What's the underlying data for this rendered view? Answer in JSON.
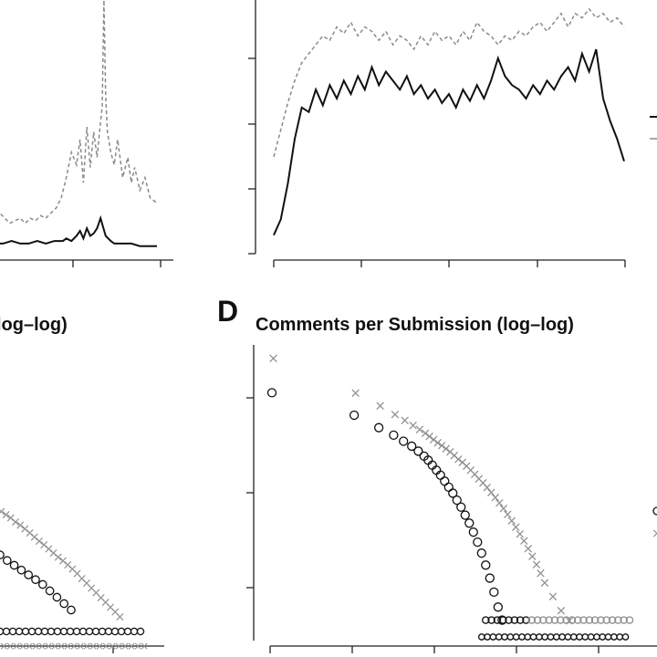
{
  "panel_c": {
    "letter": "",
    "title_fragment": "log–log)"
  },
  "panel_d": {
    "letter": "D",
    "title": "Comments per Submission (log–log)"
  },
  "colors": {
    "solid": "#111111",
    "dashed": "#8a8a8a",
    "marker_grey": "#8f8f8f",
    "marker_dark": "#111111"
  },
  "chart_data": [
    {
      "id": "top-left",
      "type": "line",
      "title": "",
      "series": [
        {
          "name": "",
          "style": "solid",
          "x": [
            0,
            5,
            10,
            15,
            20,
            25,
            30,
            35,
            40,
            42,
            45,
            48,
            50,
            52,
            54,
            56,
            58,
            60,
            62,
            65,
            68,
            70,
            75,
            80,
            85,
            90,
            95
          ],
          "y": [
            4,
            4,
            5,
            4,
            4,
            5,
            4,
            5,
            5,
            6,
            5,
            7,
            9,
            6,
            10,
            7,
            8,
            10,
            14,
            7,
            5,
            4,
            4,
            4,
            3,
            3,
            3
          ]
        },
        {
          "name": "",
          "style": "dashed",
          "x": [
            0,
            3,
            6,
            9,
            12,
            15,
            18,
            21,
            24,
            27,
            30,
            33,
            36,
            39,
            42,
            45,
            48,
            50,
            52,
            54,
            56,
            58,
            60,
            62,
            63,
            64,
            65,
            66,
            68,
            70,
            72,
            75,
            78,
            80,
            82,
            85,
            88,
            91,
            95
          ],
          "y": [
            20,
            16,
            14,
            12,
            13,
            14,
            12,
            14,
            13,
            15,
            14,
            16,
            18,
            22,
            30,
            40,
            35,
            45,
            28,
            50,
            34,
            48,
            38,
            52,
            58,
            100,
            62,
            48,
            40,
            35,
            45,
            30,
            38,
            28,
            34,
            25,
            30,
            22,
            20
          ]
        }
      ]
    },
    {
      "id": "top-right",
      "type": "line",
      "title": "",
      "series": [
        {
          "name": "",
          "style": "solid",
          "x": [
            0,
            2,
            4,
            6,
            8,
            10,
            12,
            14,
            16,
            18,
            20,
            22,
            24,
            26,
            28,
            30,
            32,
            34,
            36,
            38,
            40,
            42,
            44,
            46,
            48,
            50,
            52,
            54,
            56,
            58,
            60,
            62,
            64,
            66,
            68,
            70,
            72,
            74,
            76,
            78,
            80,
            82,
            84,
            86,
            88,
            90,
            92,
            94,
            96,
            98,
            100
          ],
          "y": [
            5,
            12,
            28,
            48,
            62,
            60,
            70,
            63,
            72,
            66,
            74,
            68,
            76,
            70,
            80,
            72,
            78,
            74,
            70,
            76,
            68,
            72,
            66,
            70,
            64,
            68,
            62,
            70,
            65,
            72,
            66,
            74,
            84,
            76,
            72,
            70,
            66,
            72,
            68,
            74,
            70,
            76,
            80,
            74,
            86,
            78,
            88,
            66,
            56,
            48,
            38
          ]
        },
        {
          "name": "",
          "style": "dashed",
          "x": [
            0,
            2,
            4,
            6,
            8,
            10,
            12,
            14,
            16,
            18,
            20,
            22,
            24,
            26,
            28,
            30,
            32,
            34,
            36,
            38,
            40,
            42,
            44,
            46,
            48,
            50,
            52,
            54,
            56,
            58,
            60,
            62,
            64,
            66,
            68,
            70,
            72,
            74,
            76,
            78,
            80,
            82,
            84,
            86,
            88,
            90,
            92,
            94,
            96,
            98,
            100
          ],
          "y": [
            40,
            52,
            64,
            74,
            82,
            86,
            90,
            94,
            92,
            98,
            95,
            100,
            94,
            98,
            96,
            92,
            96,
            90,
            94,
            92,
            88,
            94,
            90,
            96,
            92,
            94,
            90,
            96,
            92,
            100,
            96,
            94,
            90,
            94,
            92,
            96,
            94,
            98,
            100,
            96,
            100,
            104,
            98,
            104,
            102,
            106,
            102,
            104,
            100,
            102,
            98
          ]
        }
      ]
    },
    {
      "id": "panel-c",
      "type": "scatter",
      "title": "",
      "series": [
        {
          "name": "",
          "marker": "x",
          "x": [
            0.8,
            0.82,
            0.84,
            0.86,
            0.88,
            0.9,
            0.92,
            0.94,
            0.96,
            0.98,
            1.0,
            1.02,
            1.04,
            1.06,
            1.08,
            1.1,
            1.12,
            1.14,
            1.16,
            1.18,
            1.2,
            1.22,
            1.24,
            1.26,
            1.28,
            1.3
          ],
          "y": [
            1.6,
            1.56,
            1.52,
            1.47,
            1.43,
            1.38,
            1.33,
            1.28,
            1.23,
            1.18,
            1.13,
            1.08,
            1.03,
            0.98,
            0.93,
            0.88,
            0.82,
            0.76,
            0.7,
            0.64,
            0.58,
            0.52,
            0.46,
            0.4,
            0.34,
            0.28
          ]
        },
        {
          "name": "",
          "marker": "o",
          "x": [
            0.8,
            0.83,
            0.86,
            0.89,
            0.92,
            0.95,
            0.98,
            1.01,
            1.04,
            1.07,
            1.1
          ],
          "y": [
            1.05,
            0.98,
            0.92,
            0.86,
            0.8,
            0.74,
            0.68,
            0.6,
            0.52,
            0.44,
            0.36
          ]
        }
      ]
    },
    {
      "id": "panel-d",
      "type": "scatter",
      "title": "Comments per Submission (log–log)",
      "series": [
        {
          "name": "",
          "marker": "x",
          "x": [
            0.0,
            1.0,
            1.3,
            1.48,
            1.6,
            1.7,
            1.78,
            1.85,
            1.9,
            1.95,
            2.0,
            2.05,
            2.1,
            2.15,
            2.2,
            2.25,
            2.3,
            2.35,
            2.4,
            2.45,
            2.5,
            2.55,
            2.6,
            2.65,
            2.7,
            2.75,
            2.8,
            2.85,
            2.9,
            2.95,
            3.0,
            3.05,
            3.1,
            3.15,
            3.2,
            3.25,
            3.3,
            3.4,
            3.5,
            3.6
          ],
          "y": [
            5.55,
            4.85,
            4.6,
            4.42,
            4.3,
            4.2,
            4.12,
            4.05,
            3.98,
            3.92,
            3.86,
            3.8,
            3.74,
            3.67,
            3.6,
            3.53,
            3.46,
            3.39,
            3.31,
            3.23,
            3.14,
            3.05,
            2.96,
            2.86,
            2.76,
            2.65,
            2.54,
            2.42,
            2.3,
            2.17,
            2.03,
            1.89,
            1.74,
            1.58,
            1.42,
            1.25,
            1.05,
            0.78,
            0.5,
            0.3
          ]
        },
        {
          "name": "",
          "marker": "o",
          "x": [
            0.0,
            1.0,
            1.3,
            1.48,
            1.6,
            1.7,
            1.78,
            1.85,
            1.9,
            1.95,
            2.0,
            2.05,
            2.1,
            2.15,
            2.2,
            2.25,
            2.3,
            2.35,
            2.4,
            2.45,
            2.5,
            2.55,
            2.6,
            2.65,
            2.7,
            2.75,
            2.8
          ],
          "y": [
            4.85,
            4.4,
            4.15,
            4.0,
            3.88,
            3.78,
            3.68,
            3.58,
            3.5,
            3.4,
            3.3,
            3.2,
            3.08,
            2.96,
            2.84,
            2.7,
            2.56,
            2.4,
            2.24,
            2.06,
            1.86,
            1.64,
            1.4,
            1.14,
            0.86,
            0.56,
            0.3
          ]
        }
      ],
      "floor_rows": [
        {
          "y": 0.3,
          "x_range": [
            2.6,
            4.35
          ]
        },
        {
          "y": 0.0,
          "x_range": [
            2.55,
            4.3
          ]
        }
      ]
    }
  ]
}
